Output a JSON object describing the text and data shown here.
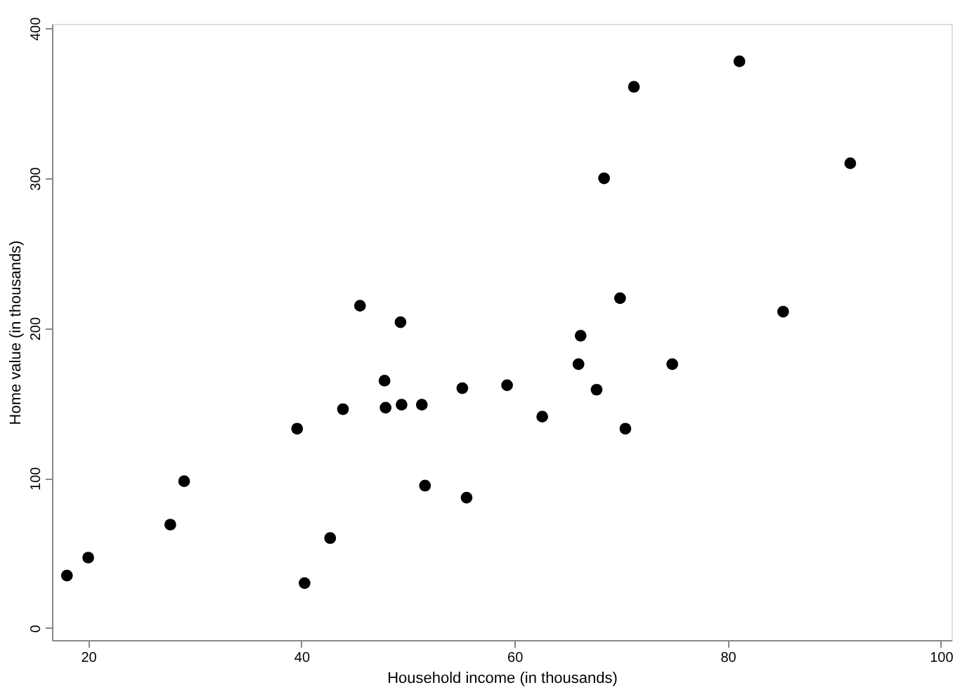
{
  "chart_data": {
    "type": "scatter",
    "xlabel": "Household income (in thousands)",
    "ylabel": "Home value (in thousands)",
    "x": [
      18.0,
      20.0,
      27.7,
      29.0,
      39.6,
      40.3,
      42.7,
      43.9,
      45.5,
      47.8,
      47.9,
      49.3,
      49.4,
      51.3,
      51.6,
      55.1,
      55.5,
      59.3,
      62.6,
      66.0,
      66.2,
      67.7,
      68.4,
      69.9,
      70.4,
      71.2,
      74.8,
      81.1,
      85.2,
      91.5
    ],
    "values": [
      35,
      47,
      69,
      98,
      133,
      30,
      60,
      146,
      215,
      165,
      147,
      204,
      149,
      149,
      95,
      160,
      87,
      162,
      141,
      176,
      195,
      159,
      300,
      220,
      133,
      361,
      176,
      378,
      211,
      310
    ],
    "color": "#000000",
    "marker": "circle",
    "grid": false,
    "xlim": [
      16.6,
      101
    ],
    "xticks": [
      20,
      40,
      60,
      80,
      100
    ],
    "ylim": [
      -8,
      403
    ],
    "yticks": [
      0,
      100,
      200,
      300,
      400
    ]
  }
}
